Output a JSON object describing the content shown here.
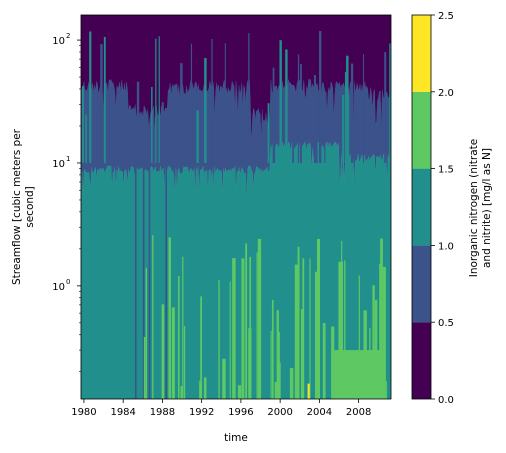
{
  "chart_data": {
    "type": "heatmap",
    "subtype": "filled-contour",
    "xlabel": "time",
    "ylabel": [
      "Streamflow [cubic meters per",
      "second]"
    ],
    "x_ticks": [
      "1980",
      "1984",
      "1988",
      "1992",
      "1996",
      "2000",
      "2004",
      "2008"
    ],
    "xlim": [
      1979.7,
      2011.3
    ],
    "y_scale": "log",
    "y_ticks": [
      {
        "value": 1,
        "base": "10",
        "exp": "0"
      },
      {
        "value": 10,
        "base": "10",
        "exp": "1"
      },
      {
        "value": 100,
        "base": "10",
        "exp": "2"
      }
    ],
    "ylim": [
      0.12,
      160
    ],
    "colorbar": {
      "label": [
        "Inorganic nitrogen (nitrate",
        "and nitrite) [mg/l as N]"
      ],
      "ticks": [
        "0.0",
        "0.5",
        "1.0",
        "1.5",
        "2.0",
        "2.5"
      ],
      "levels": [
        0.0,
        0.5,
        1.0,
        1.5,
        2.0,
        2.5
      ],
      "colors": [
        "#440154",
        "#3b528b",
        "#21908d",
        "#5ec962",
        "#fde725"
      ]
    },
    "boundaries": [
      {
        "between": "0.0-0.5 / 0.5-1.0",
        "typical_streamflow": 45,
        "note": "dips to ~20 in mid-1980s and late 1990s"
      },
      {
        "between": "0.5-1.0 / 1.0-1.5",
        "typical_streamflow": 10,
        "note": "rises to ~15-20 around 2000-2008"
      },
      {
        "between": "1.0-1.5 / 1.5-2.0",
        "typical_streamflow": 0.3,
        "note": "green streaks after 1986, broad green area 2005-2011 below ~0.3"
      }
    ]
  }
}
